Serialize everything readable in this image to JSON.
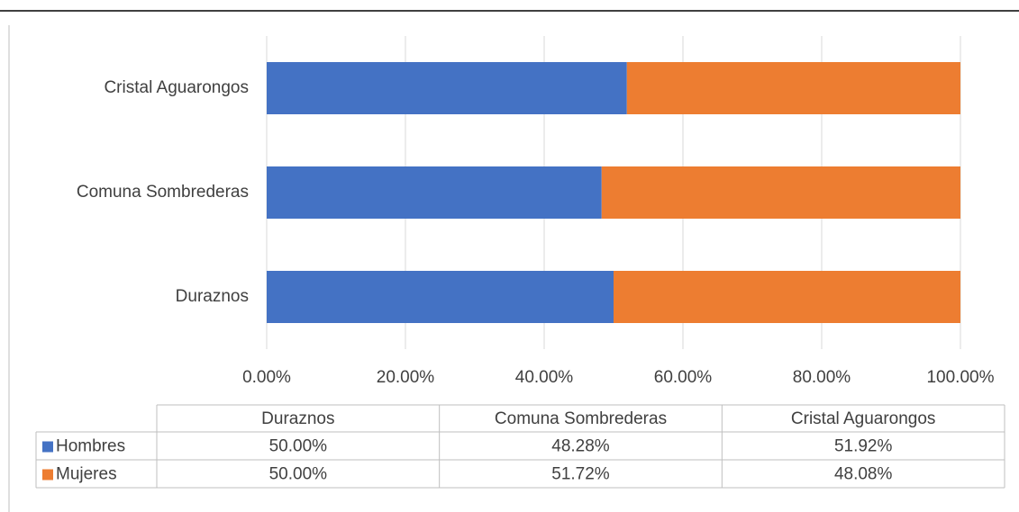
{
  "chart_data": {
    "type": "bar",
    "orientation": "horizontal",
    "stacked": true,
    "categories": [
      "Duraznos",
      "Comuna Sombrederas",
      "Cristal Aguarongos"
    ],
    "series": [
      {
        "name": "Hombres",
        "color": "#4472c4",
        "values": [
          50.0,
          48.28,
          51.92
        ],
        "value_labels": [
          "50.00%",
          "48.28%",
          "51.92%"
        ]
      },
      {
        "name": "Mujeres",
        "color": "#ed7d31",
        "values": [
          50.0,
          51.72,
          48.08
        ],
        "value_labels": [
          "50.00%",
          "51.72%",
          "48.08%"
        ]
      }
    ],
    "xlim": [
      0,
      100
    ],
    "xticks": [
      {
        "value": 0,
        "label": "0.00%"
      },
      {
        "value": 20,
        "label": "20.00%"
      },
      {
        "value": 40,
        "label": "40.00%"
      },
      {
        "value": 60,
        "label": "60.00%"
      },
      {
        "value": 80,
        "label": "80.00%"
      },
      {
        "value": 100,
        "label": "100.00%"
      }
    ],
    "grid": true,
    "data_table": true
  }
}
